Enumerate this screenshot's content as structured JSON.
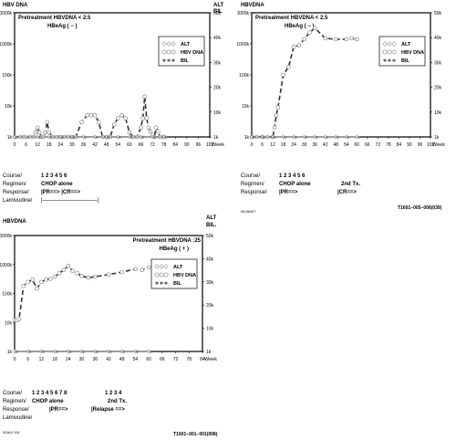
{
  "charts": [
    {
      "id": "A",
      "ylabel_left": "HBV DNA",
      "ylabel_right1": "ALT",
      "ylabel_right2": "BIL",
      "pretreatment": "Pretreatment HBVDNA < 2.5",
      "hbeag": "HBeAg ( − )",
      "legend": [
        "ALT",
        "HBV DNA",
        "BIL"
      ],
      "footer": {
        "course_label": "Course/",
        "course_values": "1 2 3 4 5 6",
        "regimen_label": "Regimen/",
        "regimen_value": "CHOP alone",
        "response_label": "Response/",
        "response_value": "|PR==>  |CR==>",
        "lamivudine_label": "Lamivudine/",
        "lamivudine_value": "|——————————|"
      }
    },
    {
      "id": "B",
      "ylabel_left": "HBVDNA",
      "ylabel_right1": "ALT",
      "ylabel_right2": "BIL",
      "pretreatment": "Pretreatment HBVDNA < 2.5",
      "hbeag": "HBeAg ( − )",
      "legend": [
        "ALT",
        "HBV DNA",
        "BIL"
      ],
      "footer": {
        "course_label": "Course/",
        "course_values": "1 2 3 4 5 6",
        "regimen_label": "Regimen/",
        "regimen_value": "CHOP alone",
        "second_tx": "2nd Tx.",
        "response_label": "Response/",
        "response_value": "|PR==>",
        "response_value2": "|CR==>",
        "small_code": "05JAN07",
        "id_code": "T1601−005−006(039)"
      }
    },
    {
      "id": "C",
      "ylabel_left": "HBVDNA",
      "ylabel_right1": "ALT",
      "ylabel_right2": "BIL.",
      "pretreatment": "Pretreatment HBVDNA :25",
      "hbeag": "HBeAg ( + )",
      "legend": [
        "ALT",
        "HBV DNA",
        "BIL"
      ],
      "footer": {
        "course_label": "Course/",
        "course_values": "1   2   3   4 5 6 7   8",
        "course_values2": "1   2   3 4",
        "regimen_label": "Regimen/",
        "regimen_value": "CHOP alone",
        "second_tx": "2nd Tx.",
        "response_label": "Response/",
        "response_value": "|PR==>",
        "response_value2": "|Relapse ==>",
        "lamivudine_label": "Lamivudine/",
        "small_code": "02AU/ 001",
        "id_code": "T1601−001−001(008)"
      }
    }
  ],
  "chart_data": [
    {
      "type": "line",
      "title": "Pretreatment HBVDNA < 2.5",
      "xlabel": "Week",
      "x_ticks": [
        0,
        6,
        12,
        18,
        24,
        30,
        36,
        42,
        48,
        54,
        60,
        66,
        72,
        78,
        84,
        90,
        96,
        102
      ],
      "xlim": [
        0,
        102
      ],
      "y_left_label": "HBV DNA",
      "y_left_scale": "log",
      "y_left_ticks": [
        "1k",
        "10k",
        "100k",
        "1000k",
        "10000k"
      ],
      "y_left_range": [
        1,
        10000
      ],
      "y_right_label": "ALT BIL.",
      "y_right_ticks": [
        "1k",
        "10k",
        "20k",
        "30k",
        "40k",
        "50k"
      ],
      "legend_position": "top-right",
      "series": [
        {
          "name": "HBV DNA",
          "style": "dashed",
          "x": [
            0,
            3,
            5,
            8,
            10,
            11,
            12,
            13,
            14,
            15,
            16,
            17,
            18,
            20,
            22,
            24,
            26,
            28,
            30,
            32,
            35,
            38,
            40,
            42,
            44,
            46,
            48,
            50,
            52,
            54,
            56,
            58,
            60,
            62,
            64,
            66,
            67,
            68,
            69,
            70,
            71,
            72,
            73,
            74,
            75,
            76,
            78
          ],
          "y": [
            1,
            1,
            1,
            1,
            1,
            1.4,
            2,
            1.4,
            1,
            1,
            1.4,
            3,
            1.4,
            1,
            1,
            1,
            1,
            1,
            1,
            1,
            3,
            5,
            5,
            5,
            3,
            1,
            1,
            1,
            2.5,
            4,
            5,
            4,
            1.4,
            1,
            1,
            2,
            4,
            20,
            4,
            2,
            1.5,
            1.2,
            1,
            2,
            1.5,
            1,
            1
          ]
        },
        {
          "name": "ALT",
          "style": "solid",
          "x": [
            0,
            6,
            12,
            18,
            24,
            30,
            36,
            42,
            48,
            54,
            60,
            66,
            72,
            78
          ],
          "y": [
            1,
            1,
            1,
            1,
            1,
            1,
            1,
            1,
            1,
            1,
            1,
            1,
            1,
            1
          ]
        },
        {
          "name": "BIL",
          "style": "solid",
          "x": [
            0,
            6,
            12,
            18,
            24,
            30,
            36,
            42,
            48,
            54,
            60,
            66,
            72,
            78
          ],
          "y": [
            1,
            1,
            1,
            1,
            1,
            1,
            1,
            1,
            1,
            1,
            1,
            1,
            1,
            1
          ]
        }
      ]
    },
    {
      "type": "line",
      "title": "Pretreatment HBVDNA < 2.5",
      "xlabel": "Week",
      "x_ticks": [
        0,
        6,
        12,
        18,
        24,
        30,
        36,
        42,
        48,
        54,
        60,
        66,
        72,
        78,
        84,
        90,
        96,
        102
      ],
      "xlim": [
        0,
        102
      ],
      "y_left_label": "HBVDNA",
      "y_left_scale": "log",
      "y_left_ticks": [
        "1k",
        "10k",
        "100k",
        "1000k",
        "10000k"
      ],
      "y_left_range": [
        1,
        10000
      ],
      "y_right_label": "ALT BIL.",
      "y_right_ticks": [
        "1k",
        "10k",
        "20k",
        "30k",
        "40k",
        "50k"
      ],
      "legend_position": "top-right",
      "series": [
        {
          "name": "HBV DNA",
          "style": "dashed",
          "x": [
            0,
            3,
            6,
            9,
            12,
            13,
            14,
            15,
            18,
            21,
            24,
            27,
            30,
            33,
            36,
            42,
            48,
            54,
            57,
            60
          ],
          "y": [
            1,
            1,
            1,
            1,
            1,
            2,
            5,
            9,
            100,
            180,
            800,
            900,
            1400,
            2300,
            3200,
            1500,
            1400,
            1400,
            1500,
            1400
          ]
        },
        {
          "name": "ALT",
          "style": "solid",
          "x": [
            0,
            6,
            12,
            18,
            24,
            30,
            36,
            42,
            48,
            54,
            60
          ],
          "y": [
            1,
            1,
            1,
            1,
            1,
            1,
            1,
            1,
            1,
            1,
            1
          ]
        },
        {
          "name": "BIL",
          "style": "solid",
          "x": [
            0,
            6,
            12,
            18,
            24,
            30,
            36,
            42,
            48,
            54,
            60
          ],
          "y": [
            1,
            1,
            1,
            1,
            1,
            1,
            1,
            1,
            1,
            1,
            1
          ]
        }
      ]
    },
    {
      "type": "line",
      "title": "Pretreatment HBVDNA :25",
      "xlabel": "Week",
      "x_ticks": [
        0,
        6,
        12,
        18,
        24,
        30,
        36,
        42,
        48,
        54,
        60,
        66,
        72,
        78,
        84
      ],
      "xlim": [
        0,
        84
      ],
      "y_left_label": "HBVDNA",
      "y_left_scale": "log",
      "y_left_ticks": [
        "1k",
        "10k",
        "100k",
        "1000k",
        "10000k"
      ],
      "y_left_range": [
        1,
        10000
      ],
      "y_right_label": "ALT BIL.",
      "y_right_ticks": [
        "1k",
        "10k",
        "20k",
        "30k",
        "40k",
        "50k"
      ],
      "legend_position": "top-right",
      "series": [
        {
          "name": "HBV DNA",
          "style": "dashed",
          "x": [
            0,
            1,
            2,
            4,
            6,
            8,
            10,
            12,
            14,
            16,
            18,
            20,
            22,
            24,
            26,
            28,
            30,
            33,
            36,
            42,
            48,
            54,
            57,
            60
          ],
          "y": [
            12,
            12,
            13,
            180,
            250,
            300,
            150,
            250,
            300,
            320,
            380,
            500,
            650,
            900,
            600,
            500,
            400,
            350,
            380,
            450,
            550,
            700,
            650,
            800
          ]
        },
        {
          "name": "ALT",
          "style": "solid",
          "x": [
            0,
            6,
            12,
            18,
            24,
            30,
            36,
            42,
            48,
            54,
            60
          ],
          "y": [
            1,
            1,
            1,
            1,
            1,
            1,
            1,
            1,
            1,
            1,
            1
          ]
        },
        {
          "name": "BIL",
          "style": "solid",
          "x": [
            0,
            6,
            12,
            18,
            24,
            30,
            36,
            42,
            48,
            54,
            60
          ],
          "y": [
            1,
            1,
            1,
            1,
            1,
            1,
            1,
            1,
            1,
            1,
            1
          ]
        }
      ]
    }
  ]
}
